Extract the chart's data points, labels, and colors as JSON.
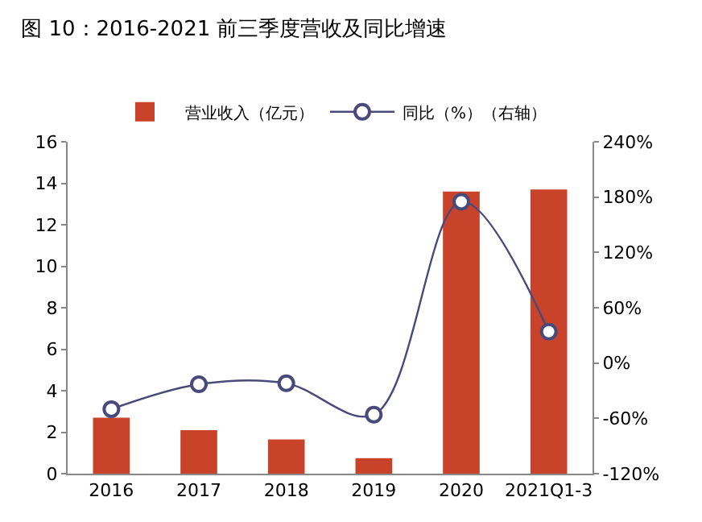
{
  "chart_data": {
    "type": "bar",
    "title": "图 10：2016-2021 前三季度营收及同比增速",
    "categories": [
      "2016",
      "2017",
      "2018",
      "2019",
      "2020",
      "2021Q1-3"
    ],
    "series": [
      {
        "name": "营业收入（亿元）",
        "color": "#c8432a",
        "values": [
          2.7,
          2.1,
          1.65,
          0.75,
          13.6,
          13.7
        ]
      },
      {
        "name": "同比（%）（右轴）",
        "type": "line",
        "axis": "y2",
        "color": "#4a4a7a",
        "marker": "circle",
        "values": [
          -50,
          -23,
          -22,
          -56,
          175,
          34
        ]
      }
    ],
    "ylim": [
      0,
      16
    ],
    "yticks": [
      0,
      2,
      4,
      6,
      8,
      10,
      12,
      14,
      16
    ],
    "y2lim": [
      -120,
      240
    ],
    "y2ticks": [
      {
        "value": -120,
        "label": "-120%"
      },
      {
        "value": -60,
        "label": "-60%"
      },
      {
        "value": 0,
        "label": "0%"
      },
      {
        "value": 60,
        "label": "60%"
      },
      {
        "value": 120,
        "label": "120%"
      },
      {
        "value": 180,
        "label": "180%"
      },
      {
        "value": 240,
        "label": "240%"
      }
    ],
    "grid": false,
    "legend": "top"
  }
}
